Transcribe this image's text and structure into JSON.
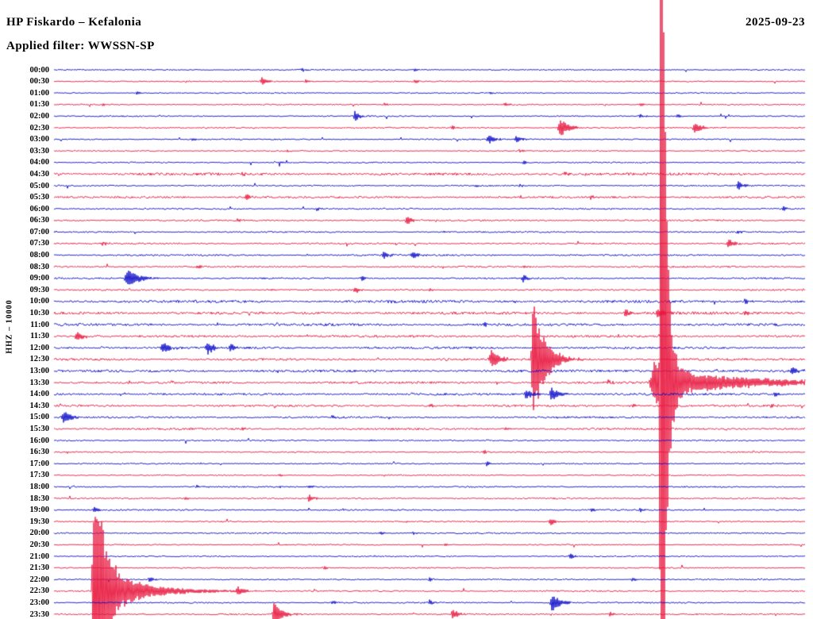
{
  "header": {
    "station_title": "HP Fiskardo – Kefalonia",
    "date": "2025-09-23",
    "filter": "Applied filter: WWSSN-SP"
  },
  "axis": {
    "channel_scale_label": "HHZ – 10000"
  },
  "chart_data": {
    "type": "line",
    "subtype": "helicorder",
    "title": "Helicorder – HP Fiskardo (Kefalonia) 2025-09-23, filter WWSSN-SP",
    "xlabel": "",
    "ylabel": "",
    "minutes_per_row": 30,
    "legend": "none",
    "grid": false,
    "background": "#ffffff",
    "trace_colors": {
      "blue": "#0a0ac8",
      "red": "#e8143c"
    },
    "rows": [
      {
        "time": "00:00",
        "color": "blue",
        "noise": 0.55,
        "events": [
          {
            "pos": 0.33,
            "amp": 2.5,
            "w": 2
          },
          {
            "pos": 0.48,
            "amp": 2,
            "w": 2
          }
        ]
      },
      {
        "time": "00:30",
        "color": "red",
        "noise": 0.6,
        "events": [
          {
            "pos": 0.277,
            "amp": 6,
            "w": 3,
            "d": 6
          },
          {
            "pos": 0.335,
            "amp": 2.5,
            "w": 2
          },
          {
            "pos": 0.48,
            "amp": 3,
            "w": 2
          }
        ]
      },
      {
        "time": "01:00",
        "color": "blue",
        "noise": 0.55,
        "events": [
          {
            "pos": 0.11,
            "amp": 2.5,
            "w": 2
          },
          {
            "pos": 0.58,
            "amp": 2,
            "w": 2
          }
        ]
      },
      {
        "time": "01:30",
        "color": "red",
        "noise": 0.6,
        "events": [
          {
            "pos": 0.065,
            "amp": 2.5,
            "w": 2
          },
          {
            "pos": 0.44,
            "amp": 2.5,
            "w": 2
          },
          {
            "pos": 0.6,
            "amp": 3,
            "w": 2
          },
          {
            "pos": 0.78,
            "amp": 2.5,
            "w": 2
          }
        ]
      },
      {
        "time": "02:00",
        "color": "blue",
        "noise": 0.6,
        "events": [
          {
            "pos": 0.401,
            "amp": 7,
            "w": 3,
            "d": 6
          },
          {
            "pos": 0.78,
            "amp": 3,
            "w": 2
          },
          {
            "pos": 0.83,
            "amp": 2.5,
            "w": 2
          }
        ]
      },
      {
        "time": "02:30",
        "color": "red",
        "noise": 0.65,
        "events": [
          {
            "pos": 0.675,
            "amp": 11,
            "w": 5,
            "d": 10
          },
          {
            "pos": 0.853,
            "amp": 8,
            "w": 3,
            "d": 8
          },
          {
            "pos": 0.53,
            "amp": 2.5,
            "w": 2
          }
        ]
      },
      {
        "time": "03:00",
        "color": "blue",
        "noise": 0.6,
        "events": [
          {
            "pos": 0.579,
            "amp": 6,
            "w": 4,
            "d": 8
          },
          {
            "pos": 0.616,
            "amp": 5,
            "w": 3,
            "d": 6
          },
          {
            "pos": 0.184,
            "amp": 2.5,
            "w": 2
          }
        ]
      },
      {
        "time": "03:30",
        "color": "red",
        "noise": 0.6,
        "events": [
          {
            "pos": 0.31,
            "amp": 2,
            "w": 2
          },
          {
            "pos": 0.62,
            "amp": 2,
            "w": 2
          }
        ]
      },
      {
        "time": "04:00",
        "color": "blue",
        "noise": 0.6,
        "events": [
          {
            "pos": 0.3,
            "amp": 2.5,
            "w": 2
          },
          {
            "pos": 0.625,
            "amp": 2.5,
            "w": 2
          }
        ]
      },
      {
        "time": "04:30",
        "color": "red",
        "noise": 1.3,
        "events": [
          {
            "pos": 0.25,
            "amp": 2.5,
            "w": 2
          },
          {
            "pos": 0.68,
            "amp": 3,
            "w": 2
          }
        ]
      },
      {
        "time": "05:00",
        "color": "blue",
        "noise": 0.7,
        "events": [
          {
            "pos": 0.911,
            "amp": 6,
            "w": 3,
            "d": 6
          },
          {
            "pos": 0.56,
            "amp": 2.5,
            "w": 2
          },
          {
            "pos": 0.62,
            "amp": 2.5,
            "w": 2
          }
        ]
      },
      {
        "time": "05:30",
        "color": "red",
        "noise": 1.0,
        "events": [
          {
            "pos": 0.256,
            "amp": 5,
            "w": 3,
            "d": 6
          },
          {
            "pos": 0.715,
            "amp": 3,
            "w": 2
          }
        ]
      },
      {
        "time": "06:00",
        "color": "blue",
        "noise": 0.7,
        "events": [
          {
            "pos": 0.97,
            "amp": 3.5,
            "w": 2
          },
          {
            "pos": 0.35,
            "amp": 2,
            "w": 2
          }
        ]
      },
      {
        "time": "06:30",
        "color": "red",
        "noise": 0.8,
        "events": [
          {
            "pos": 0.47,
            "amp": 6,
            "w": 3,
            "d": 6
          },
          {
            "pos": 0.245,
            "amp": 2.5,
            "w": 2
          }
        ]
      },
      {
        "time": "07:00",
        "color": "blue",
        "noise": 0.7,
        "events": [
          {
            "pos": 0.52,
            "amp": 2,
            "w": 2
          },
          {
            "pos": 0.91,
            "amp": 2.5,
            "w": 2
          }
        ]
      },
      {
        "time": "07:30",
        "color": "red",
        "noise": 0.8,
        "events": [
          {
            "pos": 0.898,
            "amp": 7,
            "w": 3,
            "d": 7
          },
          {
            "pos": 0.065,
            "amp": 2.5,
            "w": 2
          }
        ]
      },
      {
        "time": "08:00",
        "color": "blue",
        "noise": 0.85,
        "events": [
          {
            "pos": 0.439,
            "amp": 5,
            "w": 3,
            "d": 6
          },
          {
            "pos": 0.478,
            "amp": 4,
            "w": 3
          }
        ]
      },
      {
        "time": "08:30",
        "color": "red",
        "noise": 0.8,
        "events": [
          {
            "pos": 0.625,
            "amp": 3,
            "w": 2
          },
          {
            "pos": 0.19,
            "amp": 2.5,
            "w": 2
          }
        ]
      },
      {
        "time": "09:00",
        "color": "blue",
        "noise": 0.8,
        "events": [
          {
            "pos": 0.1,
            "amp": 13,
            "w": 7,
            "d": 12
          },
          {
            "pos": 0.625,
            "amp": 5,
            "w": 3,
            "d": 6
          },
          {
            "pos": 0.41,
            "amp": 3,
            "w": 2
          }
        ]
      },
      {
        "time": "09:30",
        "color": "red",
        "noise": 0.8,
        "events": [
          {
            "pos": 0.401,
            "amp": 5,
            "w": 3,
            "d": 6
          },
          {
            "pos": 0.29,
            "amp": 2.5,
            "w": 2
          },
          {
            "pos": 0.5,
            "amp": 2.5,
            "w": 2
          }
        ]
      },
      {
        "time": "10:00",
        "color": "blue",
        "noise": 1.3,
        "events": [
          {
            "pos": 0.445,
            "amp": 3,
            "w": 2
          },
          {
            "pos": 0.92,
            "amp": 3.5,
            "w": 2
          }
        ]
      },
      {
        "time": "10:30",
        "color": "red",
        "noise": 1.3,
        "events": [
          {
            "pos": 0.761,
            "amp": 6,
            "w": 3,
            "d": 6
          },
          {
            "pos": 0.803,
            "amp": 8,
            "w": 3,
            "d": 7
          },
          {
            "pos": 0.92,
            "amp": 3,
            "w": 2
          }
        ]
      },
      {
        "time": "11:00",
        "color": "blue",
        "noise": 1.2,
        "events": [
          {
            "pos": 0.573,
            "amp": 3,
            "w": 2
          }
        ]
      },
      {
        "time": "11:30",
        "color": "red",
        "noise": 1.1,
        "events": [
          {
            "pos": 0.031,
            "amp": 7,
            "w": 4,
            "d": 8
          }
        ]
      },
      {
        "time": "12:00",
        "color": "blue",
        "noise": 1.1,
        "events": [
          {
            "pos": 0.145,
            "amp": 8,
            "w": 4,
            "d": 8
          },
          {
            "pos": 0.205,
            "amp": 9,
            "w": 4,
            "d": 8
          },
          {
            "pos": 0.235,
            "amp": 5,
            "w": 3,
            "d": 6
          }
        ]
      },
      {
        "time": "12:30",
        "color": "red",
        "noise": 1.1,
        "events": [
          {
            "pos": 0.583,
            "amp": 12,
            "w": 5,
            "d": 10
          },
          {
            "pos": 0.638,
            "amp": 80,
            "w": 3,
            "d": 14
          }
        ]
      },
      {
        "time": "13:00",
        "color": "blue",
        "noise": 1.2,
        "events": [
          {
            "pos": 0.982,
            "amp": 5,
            "w": 3
          }
        ]
      },
      {
        "time": "13:30",
        "color": "red",
        "noise": 1.1,
        "events": [
          {
            "pos": 0.737,
            "amp": 4,
            "w": 2
          },
          {
            "pos": 0.802,
            "amp": 35,
            "w": 10,
            "d": 12
          },
          {
            "pos": 0.808,
            "amp": 900,
            "w": 2,
            "d": 5
          },
          {
            "pos": 0.815,
            "amp": 16,
            "w": 4,
            "d": 110
          }
        ]
      },
      {
        "time": "14:00",
        "color": "blue",
        "noise": 1.1,
        "events": [
          {
            "pos": 0.629,
            "amp": 7,
            "w": 3,
            "d": 7
          },
          {
            "pos": 0.663,
            "amp": 10,
            "w": 4,
            "d": 8
          },
          {
            "pos": 0.959,
            "amp": 4,
            "w": 2
          }
        ]
      },
      {
        "time": "14:30",
        "color": "red",
        "noise": 1.0,
        "events": [
          {
            "pos": 0.5,
            "amp": 3,
            "w": 2
          },
          {
            "pos": 0.77,
            "amp": 3,
            "w": 2
          },
          {
            "pos": 0.955,
            "amp": 3,
            "w": 2
          }
        ]
      },
      {
        "time": "15:00",
        "color": "blue",
        "noise": 0.9,
        "events": [
          {
            "pos": 0.013,
            "amp": 9,
            "w": 4,
            "d": 8
          },
          {
            "pos": 0.37,
            "amp": 3,
            "w": 2
          },
          {
            "pos": 0.67,
            "amp": 2.5,
            "w": 2
          }
        ]
      },
      {
        "time": "15:30",
        "color": "red",
        "noise": 1.0,
        "events": [
          {
            "pos": 0.25,
            "amp": 2.5,
            "w": 2
          },
          {
            "pos": 0.6,
            "amp": 2.5,
            "w": 2
          }
        ]
      },
      {
        "time": "16:00",
        "color": "blue",
        "noise": 0.7,
        "events": [
          {
            "pos": 0.42,
            "amp": 2,
            "w": 2
          }
        ]
      },
      {
        "time": "16:30",
        "color": "red",
        "noise": 0.65,
        "events": [
          {
            "pos": 0.573,
            "amp": 2.5,
            "w": 2
          }
        ]
      },
      {
        "time": "17:00",
        "color": "blue",
        "noise": 0.6,
        "events": [
          {
            "pos": 0.576,
            "amp": 3.5,
            "w": 2
          }
        ]
      },
      {
        "time": "17:30",
        "color": "red",
        "noise": 0.6,
        "events": [
          {
            "pos": 0.3,
            "amp": 2,
            "w": 2
          }
        ]
      },
      {
        "time": "18:00",
        "color": "blue",
        "noise": 0.65,
        "events": [
          {
            "pos": 0.19,
            "amp": 2.5,
            "w": 2
          },
          {
            "pos": 0.3,
            "amp": 2.5,
            "w": 2
          },
          {
            "pos": 0.34,
            "amp": 2.5,
            "w": 2
          }
        ]
      },
      {
        "time": "18:30",
        "color": "red",
        "noise": 0.7,
        "events": [
          {
            "pos": 0.34,
            "amp": 6,
            "w": 3,
            "d": 6
          },
          {
            "pos": 0.175,
            "amp": 2.5,
            "w": 2
          }
        ]
      },
      {
        "time": "19:00",
        "color": "blue",
        "noise": 0.7,
        "events": [
          {
            "pos": 0.053,
            "amp": 4,
            "w": 2
          },
          {
            "pos": 0.715,
            "amp": 3.5,
            "w": 2
          },
          {
            "pos": 0.78,
            "amp": 3,
            "w": 2
          }
        ]
      },
      {
        "time": "19:30",
        "color": "red",
        "noise": 0.65,
        "events": [
          {
            "pos": 0.661,
            "amp": 5,
            "w": 3,
            "d": 6
          }
        ]
      },
      {
        "time": "20:00",
        "color": "blue",
        "noise": 0.65,
        "events": [
          {
            "pos": 0.435,
            "amp": 2.5,
            "w": 2
          },
          {
            "pos": 0.478,
            "amp": 2.5,
            "w": 2
          }
        ]
      },
      {
        "time": "20:30",
        "color": "red",
        "noise": 0.6,
        "events": [
          {
            "pos": 0.52,
            "amp": 2,
            "w": 2
          }
        ]
      },
      {
        "time": "21:00",
        "color": "blue",
        "noise": 0.6,
        "events": [
          {
            "pos": 0.687,
            "amp": 4,
            "w": 2,
            "d": 5
          }
        ]
      },
      {
        "time": "21:30",
        "color": "red",
        "noise": 0.6,
        "events": [
          {
            "pos": 0.36,
            "amp": 2,
            "w": 2
          }
        ]
      },
      {
        "time": "22:00",
        "color": "blue",
        "noise": 0.65,
        "events": [
          {
            "pos": 0.127,
            "amp": 4,
            "w": 2
          },
          {
            "pos": 0.5,
            "amp": 3,
            "w": 2
          },
          {
            "pos": 0.77,
            "amp": 3,
            "w": 2
          }
        ]
      },
      {
        "time": "22:30",
        "color": "red",
        "noise": 0.7,
        "events": [
          {
            "pos": 0.053,
            "amp": 160,
            "w": 3,
            "d": 12
          },
          {
            "pos": 0.06,
            "amp": 24,
            "w": 4,
            "d": 55
          },
          {
            "pos": 0.245,
            "amp": 5,
            "w": 3,
            "d": 6
          }
        ]
      },
      {
        "time": "23:00",
        "color": "blue",
        "noise": 0.7,
        "events": [
          {
            "pos": 0.663,
            "amp": 12,
            "w": 3,
            "d": 10
          },
          {
            "pos": 0.37,
            "amp": 3,
            "w": 2
          },
          {
            "pos": 0.5,
            "amp": 3.5,
            "w": 2
          }
        ]
      },
      {
        "time": "23:30",
        "color": "red",
        "noise": 0.7,
        "events": [
          {
            "pos": 0.293,
            "amp": 14,
            "w": 3,
            "d": 10
          },
          {
            "pos": 0.531,
            "amp": 6,
            "w": 3,
            "d": 8
          },
          {
            "pos": 0.74,
            "amp": 3,
            "w": 2
          }
        ]
      }
    ]
  }
}
